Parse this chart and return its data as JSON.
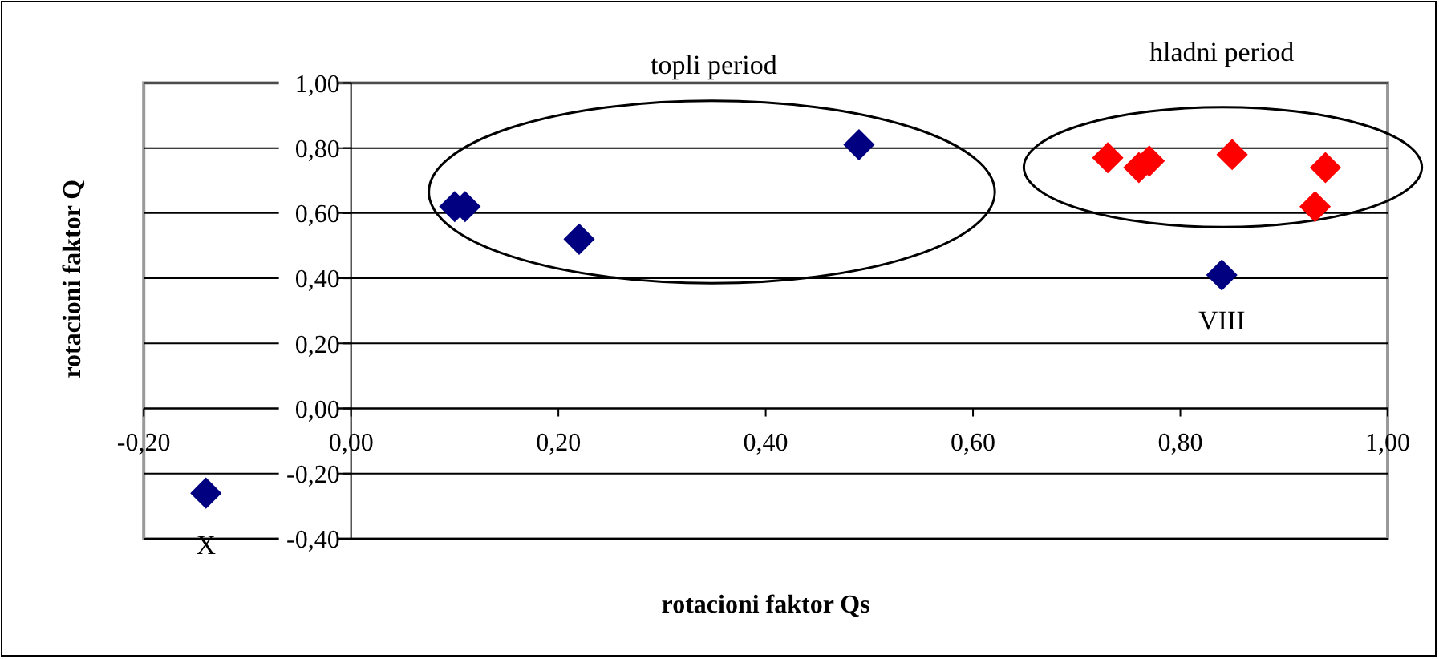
{
  "chart_data": {
    "type": "scatter",
    "xlabel": "rotacioni faktor Qs",
    "ylabel": "rotacioni faktor Q",
    "xlim": [
      -0.2,
      1.0
    ],
    "ylim": [
      -0.4,
      1.0
    ],
    "xticks": [
      {
        "value": -0.2,
        "label": "-0,20"
      },
      {
        "value": 0,
        "label": "0,00"
      },
      {
        "value": 0.2,
        "label": "0,20"
      },
      {
        "value": 0.4,
        "label": "0,40"
      },
      {
        "value": 0.6,
        "label": "0,60"
      },
      {
        "value": 0.8,
        "label": "0,80"
      },
      {
        "value": 1.0,
        "label": "1,00"
      }
    ],
    "yticks": [
      {
        "value": 1.0,
        "label": "1,00"
      },
      {
        "value": 0.8,
        "label": "0,80"
      },
      {
        "value": 0.6,
        "label": "0,60"
      },
      {
        "value": 0.4,
        "label": "0,40"
      },
      {
        "value": 0.2,
        "label": "0,20"
      },
      {
        "value": 0,
        "label": "0,00"
      },
      {
        "value": -0.2,
        "label": "-0,20"
      },
      {
        "value": -0.4,
        "label": "-0,40"
      }
    ],
    "grid": "y",
    "marker": "diamond",
    "series": [
      {
        "color": "#000080",
        "x": [
          -0.14,
          0.1,
          0.11,
          0.22,
          0.49,
          0.84
        ],
        "values": [
          -0.26,
          0.62,
          0.62,
          0.52,
          0.81,
          0.41
        ]
      },
      {
        "color": "#ff0000",
        "x": [
          0.73,
          0.76,
          0.77,
          0.85,
          0.94,
          0.93
        ],
        "values": [
          0.77,
          0.74,
          0.76,
          0.78,
          0.74,
          0.62
        ]
      }
    ],
    "annotations": [
      "topli period",
      "hladni period",
      {
        "text": "X",
        "x": -0.14,
        "y": -0.26
      },
      {
        "text": "VIII",
        "x": 0.84,
        "y": 0.41
      }
    ]
  }
}
